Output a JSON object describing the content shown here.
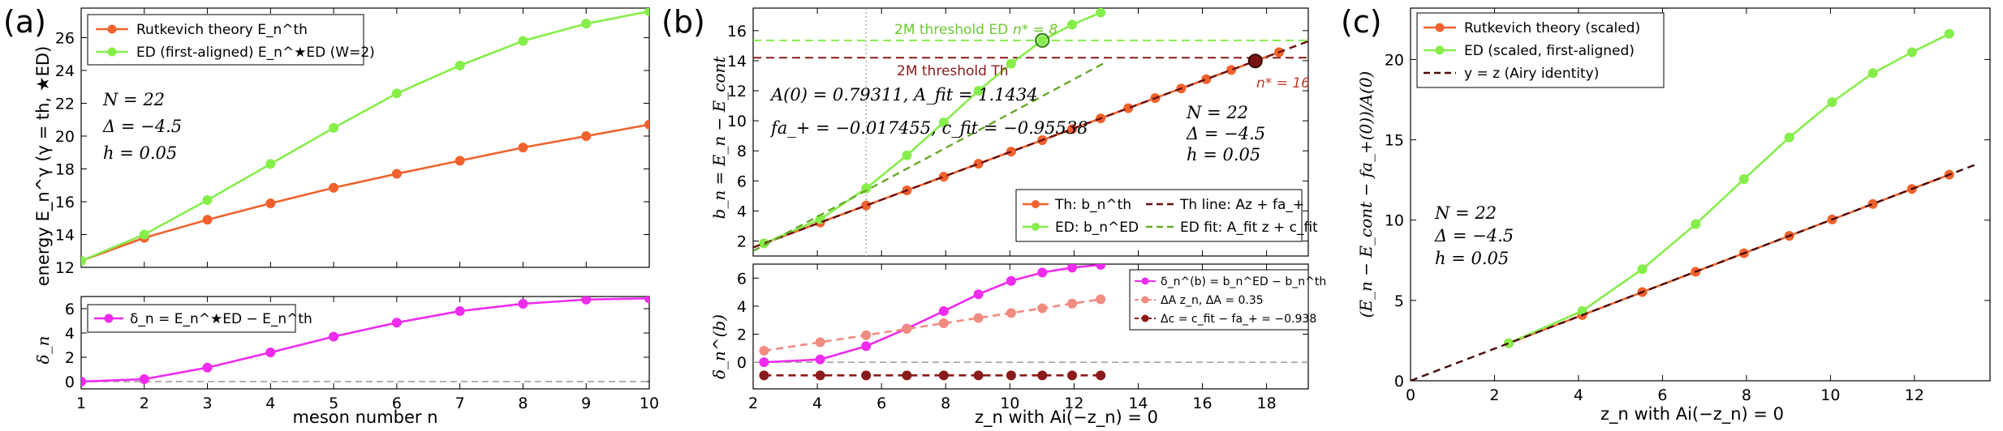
{
  "chart_data": [
    {
      "id": "a_top",
      "type": "line",
      "panel_label": "(a)",
      "xlim": [
        1,
        10
      ],
      "ylim": [
        12,
        27.8
      ],
      "xticks": [
        1,
        2,
        3,
        4,
        5,
        6,
        7,
        8,
        9,
        10
      ],
      "yticks": [
        12,
        14,
        16,
        18,
        20,
        22,
        24,
        26
      ],
      "xlabel": "",
      "ylabel": "energy E_n^γ (γ = th, ★ED)",
      "legend": [
        "Rutkevich theory E_n^th",
        "ED (first-aligned) E_n^★ED (W=2)"
      ],
      "legend_position": "top-left",
      "annotations": [
        "N = 22",
        "Δ = −4.5",
        "h = 0.05"
      ],
      "series": [
        {
          "name": "Rutkevich theory E_n^th",
          "color": "#f0622d",
          "x": [
            1,
            2,
            3,
            4,
            5,
            6,
            7,
            8,
            9,
            10
          ],
          "y": [
            12.4,
            13.8,
            14.9,
            15.9,
            16.85,
            17.7,
            18.5,
            19.3,
            20.0,
            20.7
          ]
        },
        {
          "name": "ED (first-aligned) E_n^★ED (W=2)",
          "color": "#86ee4a",
          "x": [
            1,
            2,
            3,
            4,
            5,
            6,
            7,
            8,
            9,
            10
          ],
          "y": [
            12.4,
            14.0,
            16.1,
            18.3,
            20.5,
            22.6,
            24.3,
            25.8,
            26.85,
            27.6
          ]
        }
      ]
    },
    {
      "id": "a_bottom",
      "type": "line",
      "xlim": [
        1,
        10
      ],
      "ylim": [
        -0.6,
        7
      ],
      "xticks": [
        1,
        2,
        3,
        4,
        5,
        6,
        7,
        8,
        9,
        10
      ],
      "yticks": [
        0,
        2,
        4,
        6
      ],
      "xlabel": "meson number n",
      "ylabel": "δ_n",
      "legend": [
        "δ_n = E_n^★ED − E_n^th"
      ],
      "legend_position": "top-left",
      "series": [
        {
          "name": "δ_n = E_n^★ED − E_n^th",
          "color": "#ee2bee",
          "x": [
            1,
            2,
            3,
            4,
            5,
            6,
            7,
            8,
            9,
            10
          ],
          "y": [
            0.0,
            0.2,
            1.15,
            2.4,
            3.7,
            4.85,
            5.8,
            6.4,
            6.75,
            6.85
          ]
        }
      ],
      "reference_lines": [
        {
          "y": 0,
          "style": "dashed",
          "color": "#999999"
        }
      ]
    },
    {
      "id": "b_top",
      "type": "line",
      "panel_label": "(b)",
      "xlim": [
        2,
        19.3
      ],
      "ylim": [
        1,
        17.5
      ],
      "xticks": [
        2,
        4,
        6,
        8,
        10,
        12,
        14,
        16,
        18
      ],
      "yticks": [
        2,
        4,
        6,
        8,
        10,
        12,
        14,
        16
      ],
      "xlabel": "",
      "ylabel": "b_n = E_n − E_cont",
      "legend": [
        "Th: b_n^th",
        "ED: b_n^ED",
        "Th line: Az + fa_+",
        "ED fit: A_fit z + c_fit"
      ],
      "legend_position": "lower-right",
      "annotations": [
        "A(0) = 0.79311, A_fit = 1.1434",
        "fa_+ = −0.017455, c_fit = −0.95538",
        "N = 22",
        "Δ = −4.5",
        "h = 0.05",
        "2M threshold ED",
        "n* = 8",
        "2M threshold Th",
        "n* = 16"
      ],
      "thresholds": [
        {
          "label": "2M threshold ED",
          "y": 15.35,
          "color": "#86ee4a"
        },
        {
          "label": "2M threshold Th",
          "y": 14.2,
          "color": "#8b1a1a"
        }
      ],
      "vline_x": 5.52,
      "series": [
        {
          "name": "Th: b_n^th",
          "color": "#f0622d",
          "x": [
            2.34,
            4.09,
            5.52,
            6.79,
            7.94,
            9.02,
            10.04,
            11.01,
            11.94,
            12.83,
            13.69,
            14.53,
            15.34,
            16.12,
            16.9,
            17.65,
            18.39
          ],
          "y": [
            1.84,
            3.23,
            4.36,
            5.37,
            6.28,
            7.14,
            7.95,
            8.71,
            9.45,
            10.16,
            10.84,
            11.51,
            12.15,
            12.77,
            13.38,
            13.98,
            14.57
          ]
        },
        {
          "name": "ED: b_n^ED",
          "color": "#86ee4a",
          "x": [
            2.34,
            4.09,
            5.52,
            6.79,
            7.94,
            9.02,
            10.04,
            11.01,
            11.94,
            12.83
          ],
          "y": [
            1.84,
            3.45,
            5.5,
            7.7,
            9.9,
            12.0,
            13.8,
            15.35,
            16.4,
            17.2
          ]
        },
        {
          "name": "Th line: Az + fa_+",
          "color": "#6b0f0f",
          "style": "dashed",
          "x": [
            2.0,
            19.3
          ],
          "y": [
            1.569,
            15.29
          ]
        },
        {
          "name": "ED fit: A_fit z + c_fit",
          "color": "#6aa829",
          "style": "dashed",
          "x": [
            2.0,
            12.9
          ],
          "y": [
            1.33,
            13.8
          ]
        }
      ]
    },
    {
      "id": "b_bottom",
      "type": "line",
      "xlim": [
        2,
        19.3
      ],
      "ylim": [
        -1.9,
        7
      ],
      "xticks": [
        2,
        4,
        6,
        8,
        10,
        12,
        14,
        16,
        18
      ],
      "yticks": [
        0,
        2,
        4,
        6
      ],
      "xlabel": "z_n with Ai(−z_n) = 0",
      "ylabel": "δ_n^(b)",
      "legend": [
        "δ_n^(b) = b_n^ED − b_n^th",
        "ΔA z_n, ΔA = 0.35",
        "Δc = c_fit − fa_+ = −0.938"
      ],
      "legend_position": "top-right",
      "series": [
        {
          "name": "δ_n^(b) = b_n^ED − b_n^th",
          "color": "#ee2bee",
          "x": [
            2.34,
            4.09,
            5.52,
            6.79,
            7.94,
            9.02,
            10.04,
            11.01,
            11.94,
            12.83
          ],
          "y": [
            0.0,
            0.2,
            1.15,
            2.4,
            3.65,
            4.85,
            5.8,
            6.4,
            6.75,
            6.95
          ]
        },
        {
          "name": "ΔA z_n, ΔA = 0.35",
          "color": "#f08b80",
          "style": "dashed",
          "x": [
            2.34,
            4.09,
            5.52,
            6.79,
            7.94,
            9.02,
            10.04,
            11.01,
            11.94,
            12.83
          ],
          "y": [
            0.82,
            1.43,
            1.93,
            2.38,
            2.78,
            3.16,
            3.51,
            3.85,
            4.18,
            4.49
          ]
        },
        {
          "name": "Δc = c_fit − fa_+ = −0.938",
          "color": "#8b1a1a",
          "style": "dashed",
          "x": [
            2.34,
            4.09,
            5.52,
            6.79,
            7.94,
            9.02,
            10.04,
            11.01,
            11.94,
            12.83
          ],
          "y": [
            -0.938,
            -0.938,
            -0.938,
            -0.938,
            -0.938,
            -0.938,
            -0.938,
            -0.938,
            -0.938,
            -0.938
          ]
        }
      ],
      "reference_lines": [
        {
          "y": 0,
          "style": "dashed",
          "color": "#999999"
        }
      ]
    },
    {
      "id": "c",
      "type": "line",
      "panel_label": "(c)",
      "xlim": [
        0,
        13.8
      ],
      "ylim": [
        0,
        23.2
      ],
      "xticks": [
        0,
        2,
        4,
        6,
        8,
        10,
        12
      ],
      "yticks": [
        0,
        5,
        10,
        15,
        20
      ],
      "xlabel": "z_n with Ai(−z_n) = 0",
      "ylabel": "(E_n − E_cont − fa_+(0))/A(0)",
      "legend": [
        "Rutkevich theory (scaled)",
        "ED (scaled, first-aligned)",
        "y = z (Airy identity)"
      ],
      "legend_position": "top-left",
      "annotations": [
        "N = 22",
        "Δ = −4.5",
        "h = 0.05"
      ],
      "series": [
        {
          "name": "Rutkevich theory (scaled)",
          "color": "#f0622d",
          "x": [
            2.34,
            4.09,
            5.52,
            6.79,
            7.94,
            9.02,
            10.04,
            11.01,
            11.94,
            12.83
          ],
          "y": [
            2.34,
            4.09,
            5.52,
            6.79,
            7.94,
            9.02,
            10.04,
            11.01,
            11.94,
            12.83
          ]
        },
        {
          "name": "ED (scaled, first-aligned)",
          "color": "#86ee4a",
          "x": [
            2.34,
            4.09,
            5.52,
            6.79,
            7.94,
            9.02,
            10.04,
            11.01,
            11.94,
            12.83
          ],
          "y": [
            2.34,
            4.35,
            6.95,
            9.75,
            12.55,
            15.15,
            17.35,
            19.15,
            20.45,
            21.6
          ]
        },
        {
          "name": "y = z (Airy identity)",
          "color": "#4a0b0b",
          "style": "dashed",
          "x": [
            0,
            13.5
          ],
          "y": [
            0,
            13.5
          ]
        }
      ]
    }
  ]
}
